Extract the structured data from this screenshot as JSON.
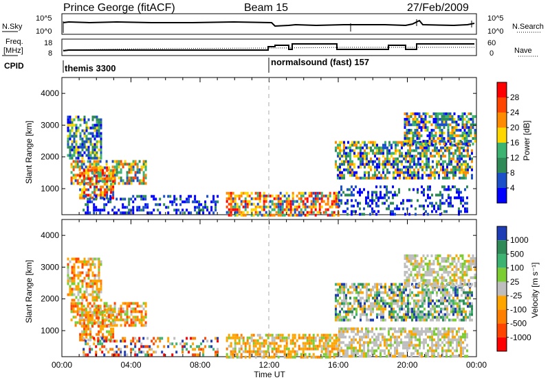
{
  "header": {
    "station": "Prince George (fitACF)",
    "beam": "Beam 15",
    "date": "27/Feb/2009"
  },
  "noise_panel": {
    "left_label": "N.Sky",
    "left_ticks": [
      "10^5",
      "10^0"
    ],
    "right_ticks": [
      "10^5",
      "10^0"
    ],
    "right_label": "N.Search"
  },
  "freq_panel": {
    "left_label_1": "Freq.",
    "left_label_2": "[MHz]",
    "left_ticks": [
      "18",
      "8"
    ],
    "right_ticks": [
      "60",
      "0"
    ],
    "right_label": "Nave"
  },
  "cpid": {
    "label": "CPID",
    "programs": [
      "themis 3300",
      "normalsound (fast) 157"
    ]
  },
  "chart_data": [
    {
      "type": "heatmap",
      "name": "power",
      "xlabel": "",
      "ylabel": "Slant Range [km]",
      "xlim": [
        "00:00",
        "24:00"
      ],
      "ylim": [
        180,
        4500
      ],
      "yticks": [
        "1000",
        "2000",
        "3000",
        "4000"
      ],
      "colorbar_label": "Power [dB]",
      "colorbar_ticks": [
        "4",
        "8",
        "12",
        "16",
        "20",
        "24",
        "28"
      ],
      "colorbar_colors": [
        "#0000ff",
        "#1c50c8",
        "#2e8b57",
        "#3cb371",
        "#ffd700",
        "#ff8c00",
        "#ff4500",
        "#ff0000"
      ],
      "regions": [
        {
          "t": [
            0.3,
            2.3
          ],
          "r": [
            2000,
            3300
          ],
          "level": "low-mid"
        },
        {
          "t": [
            0.5,
            4.9
          ],
          "r": [
            1200,
            1900
          ],
          "level": "mid-high"
        },
        {
          "t": [
            1.0,
            3.0
          ],
          "r": [
            700,
            1700
          ],
          "level": "high"
        },
        {
          "t": [
            1.2,
            9.0
          ],
          "r": [
            200,
            800
          ],
          "level": "low"
        },
        {
          "t": [
            9.5,
            16.0
          ],
          "r": [
            200,
            900
          ],
          "level": "high"
        },
        {
          "t": [
            15.8,
            23.8
          ],
          "r": [
            1300,
            2500
          ],
          "level": "mid"
        },
        {
          "t": [
            19.8,
            23.9
          ],
          "r": [
            2400,
            3400
          ],
          "level": "mid"
        },
        {
          "t": [
            16.0,
            23.5
          ],
          "r": [
            200,
            1100
          ],
          "level": "low"
        }
      ]
    },
    {
      "type": "heatmap",
      "name": "velocity",
      "xlabel": "Time UT",
      "ylabel": "Slant Range [km]",
      "xlim": [
        "00:00",
        "24:00"
      ],
      "ylim": [
        180,
        4500
      ],
      "xticks": [
        "00:00",
        "04:00",
        "08:00",
        "12:00",
        "16:00",
        "20:00",
        "00:00"
      ],
      "yticks": [
        "1000",
        "2000",
        "3000",
        "4000"
      ],
      "colorbar_label": "Velocity [m s⁻¹]",
      "colorbar_ticks": [
        "1000",
        "500",
        "100",
        "25",
        "-25",
        "-100",
        "-500",
        "-1000"
      ],
      "colorbar_colors": [
        "#1e3cb4",
        "#2e8b57",
        "#3cb371",
        "#7ccd32",
        "#bebebe",
        "#ffa500",
        "#ff7f00",
        "#ff4500",
        "#ff0000"
      ],
      "regions": [
        {
          "t": [
            0.3,
            2.3
          ],
          "r": [
            2000,
            3300
          ],
          "level": "orange"
        },
        {
          "t": [
            0.5,
            4.9
          ],
          "r": [
            1200,
            1900
          ],
          "level": "orange"
        },
        {
          "t": [
            1.0,
            3.0
          ],
          "r": [
            700,
            1700
          ],
          "level": "orange"
        },
        {
          "t": [
            1.2,
            9.0
          ],
          "r": [
            200,
            800
          ],
          "level": "mixed"
        },
        {
          "t": [
            9.5,
            16.0
          ],
          "r": [
            200,
            900
          ],
          "level": "orange-gray"
        },
        {
          "t": [
            15.8,
            23.8
          ],
          "r": [
            1300,
            2500
          ],
          "level": "gray-green"
        },
        {
          "t": [
            19.8,
            23.9
          ],
          "r": [
            2400,
            3400
          ],
          "level": "gray"
        },
        {
          "t": [
            16.0,
            23.5
          ],
          "r": [
            200,
            1100
          ],
          "level": "gray"
        }
      ]
    }
  ],
  "program_change_time": "12:00"
}
